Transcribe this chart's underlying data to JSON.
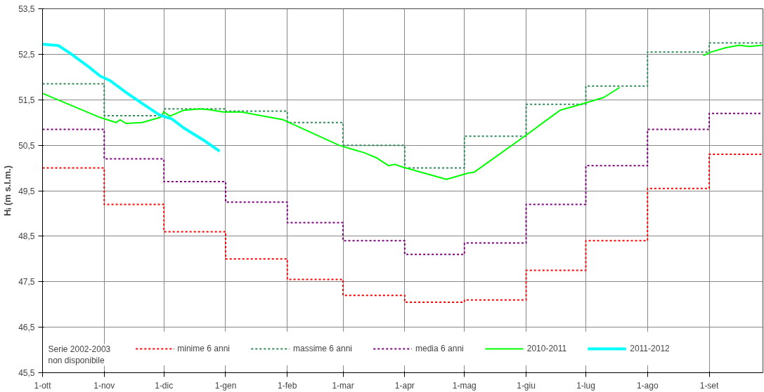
{
  "chart_data": {
    "type": "line",
    "ylabel": "Hᵢ (m s.l.m.)",
    "xlim": [
      "2010-10-01",
      "2011-09-28"
    ],
    "ylim": [
      45.5,
      53.5
    ],
    "xticks": [
      {
        "value": "2010-10-01",
        "label": "1-ott"
      },
      {
        "value": "2010-11-01",
        "label": "1-nov"
      },
      {
        "value": "2010-12-01",
        "label": "1-dic"
      },
      {
        "value": "2011-01-01",
        "label": "1-gen"
      },
      {
        "value": "2011-02-01",
        "label": "1-feb"
      },
      {
        "value": "2011-03-01",
        "label": "1-mar"
      },
      {
        "value": "2011-04-01",
        "label": "1-apr"
      },
      {
        "value": "2011-05-01",
        "label": "1-mag"
      },
      {
        "value": "2011-06-01",
        "label": "1-giu"
      },
      {
        "value": "2011-07-01",
        "label": "1-lug"
      },
      {
        "value": "2011-08-01",
        "label": "1-ago"
      },
      {
        "value": "2011-09-01",
        "label": "1-set"
      }
    ],
    "yticks": [
      {
        "value": 45.5,
        "label": "45,5"
      },
      {
        "value": 46.5,
        "label": "46,5"
      },
      {
        "value": 47.5,
        "label": "47,5"
      },
      {
        "value": 48.5,
        "label": "48,5"
      },
      {
        "value": 49.5,
        "label": "49,5"
      },
      {
        "value": 50.5,
        "label": "50,5"
      },
      {
        "value": 51.5,
        "label": "51,5"
      },
      {
        "value": 52.5,
        "label": "52,5"
      },
      {
        "value": 53.5,
        "label": "53,5"
      }
    ],
    "grid": true,
    "legend": "bottom",
    "annotations": [
      "Serie 2002-2003\nnon disponibile"
    ],
    "series": [
      {
        "name": "minime 6 anni",
        "type": "step",
        "line_style": "dotted",
        "color": "#ff0000",
        "x": [
          "2010-10-01",
          "2010-11-01",
          "2010-12-01",
          "2011-01-01",
          "2011-02-01",
          "2011-03-01",
          "2011-04-01",
          "2011-05-01",
          "2011-06-01",
          "2011-07-01",
          "2011-08-01",
          "2011-09-01",
          "2011-09-28"
        ],
        "values": [
          50.0,
          49.2,
          48.6,
          48.0,
          47.55,
          47.2,
          47.05,
          47.1,
          47.75,
          48.4,
          49.55,
          50.3,
          50.3
        ]
      },
      {
        "name": "massime 6 anni",
        "type": "step",
        "line_style": "dotted",
        "color": "#2e8b57",
        "x": [
          "2010-10-01",
          "2010-11-01",
          "2010-12-01",
          "2011-01-01",
          "2011-02-01",
          "2011-03-01",
          "2011-04-01",
          "2011-05-01",
          "2011-06-01",
          "2011-07-01",
          "2011-08-01",
          "2011-09-01",
          "2011-09-28"
        ],
        "values": [
          51.85,
          51.15,
          51.3,
          51.25,
          51.0,
          50.5,
          50.0,
          50.7,
          51.4,
          51.8,
          52.55,
          52.75,
          52.75
        ]
      },
      {
        "name": "media 6 anni",
        "type": "step",
        "line_style": "dotted",
        "color": "#800080",
        "x": [
          "2010-10-01",
          "2010-11-01",
          "2010-12-01",
          "2011-01-01",
          "2011-02-01",
          "2011-03-01",
          "2011-04-01",
          "2011-05-01",
          "2011-06-01",
          "2011-07-01",
          "2011-08-01",
          "2011-09-01",
          "2011-09-28"
        ],
        "values": [
          50.85,
          50.2,
          49.7,
          49.25,
          48.8,
          48.4,
          48.1,
          48.35,
          49.2,
          50.05,
          50.85,
          51.2,
          51.2
        ]
      },
      {
        "name": "2010-2011",
        "line_style": "solid",
        "color": "#00ff00",
        "x": [
          "2010-10-01",
          "2010-10-30",
          "2010-11-07",
          "2010-11-09",
          "2010-11-12",
          "2010-11-20",
          "2010-11-29",
          "2010-12-01",
          "2010-12-04",
          "2010-12-11",
          "2010-12-19",
          "2010-12-24",
          "2010-12-31",
          "2011-01-09",
          "2011-01-30",
          "2011-02-27",
          "2011-03-12",
          "2011-03-18",
          "2011-03-24",
          "2011-03-27",
          "2011-03-31",
          "2011-04-22",
          "2011-05-03",
          "2011-05-06",
          "2011-05-31",
          "2011-06-15",
          "2011-06-18",
          "2011-06-30",
          "2011-07-10",
          "2011-07-18",
          "2011-08-07",
          "2011-08-29",
          "2011-09-02",
          "2011-09-09",
          "2011-09-16",
          "2011-09-21",
          "2011-09-28"
        ],
        "values": [
          51.64,
          51.11,
          51.0,
          51.06,
          50.98,
          51.0,
          51.11,
          51.23,
          51.14,
          51.27,
          51.3,
          51.28,
          51.23,
          51.23,
          51.06,
          50.5,
          50.33,
          50.22,
          50.05,
          50.08,
          50.02,
          49.75,
          49.89,
          49.91,
          50.69,
          51.17,
          51.27,
          51.42,
          51.55,
          51.77,
          null,
          52.47,
          52.55,
          52.64,
          52.7,
          52.67,
          52.7
        ]
      },
      {
        "name": "2011-2012",
        "line_style": "solid",
        "color": "#00ffff",
        "x": [
          "2010-10-01",
          "2010-10-09",
          "2010-10-15",
          "2010-10-24",
          "2010-10-30",
          "2010-11-04",
          "2010-11-12",
          "2010-11-20",
          "2010-11-29",
          "2010-12-05",
          "2010-12-11",
          "2010-12-21",
          "2010-12-29"
        ],
        "values": [
          52.72,
          52.69,
          52.52,
          52.23,
          52.02,
          51.92,
          51.66,
          51.42,
          51.16,
          51.08,
          50.88,
          50.61,
          50.37
        ]
      }
    ]
  }
}
